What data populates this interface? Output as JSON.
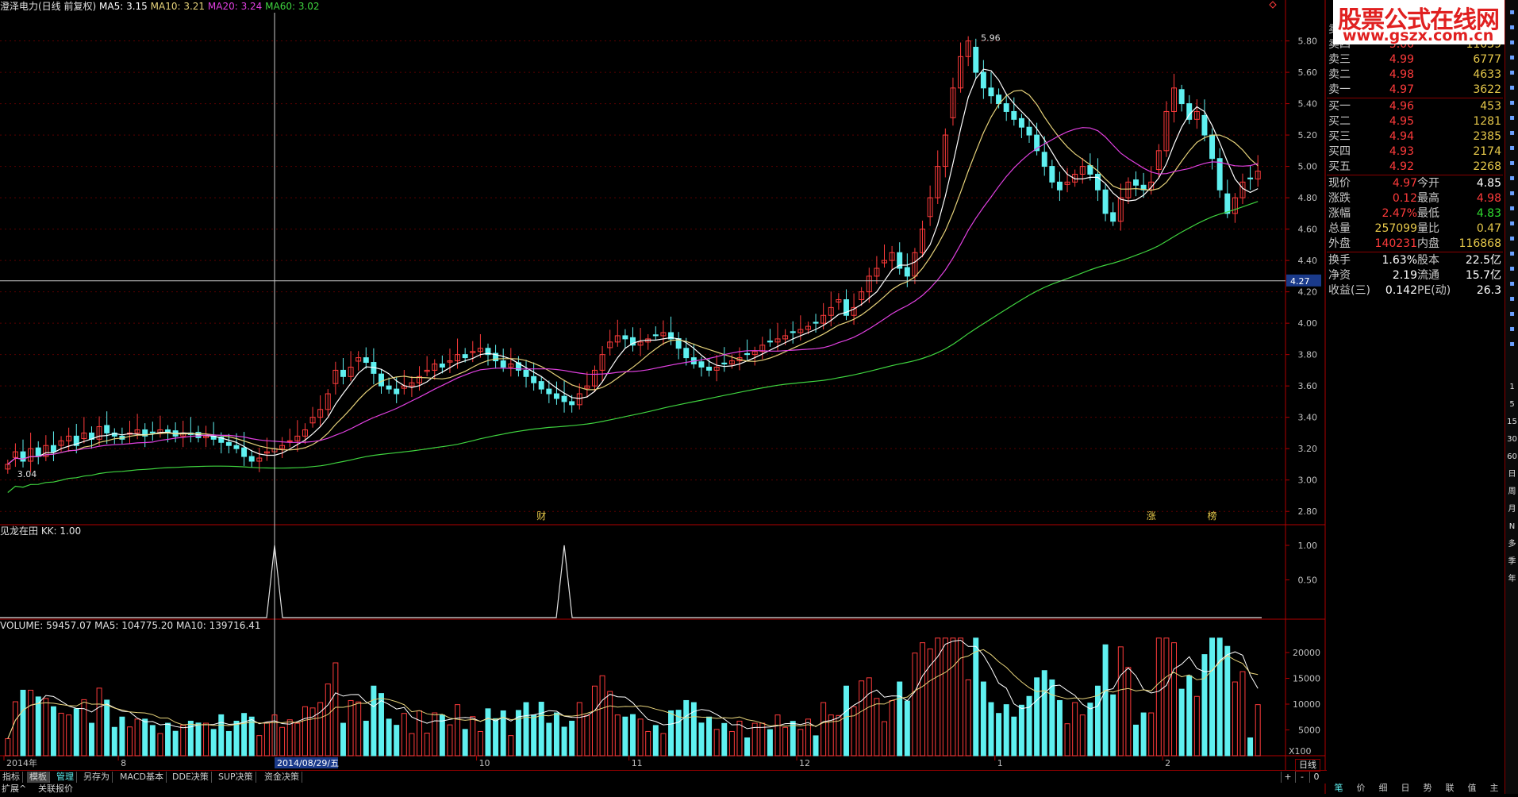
{
  "header": {
    "title": "澄泽电力(日线 前复权)",
    "ma5_label": "MA5: 3.15",
    "ma10_label": "MA10: 3.21",
    "ma20_label": "MA20: 3.24",
    "ma60_label": "MA60: 3.02"
  },
  "colors": {
    "up": "#ff3b3b",
    "down": "#5ff0f0",
    "ma5": "#ffffff",
    "ma10": "#e6d27a",
    "ma20": "#e040e0",
    "ma60": "#3fd43f",
    "axis": "#b00000"
  },
  "chart_data": {
    "type": "candlestick",
    "price_axis": {
      "ticks": [
        "5.80",
        "5.60",
        "5.40",
        "5.20",
        "5.00",
        "4.80",
        "4.60",
        "4.40",
        "4.20",
        "4.00",
        "3.80",
        "3.60",
        "3.40",
        "3.20",
        "3.00",
        "2.80"
      ],
      "range": [
        2.72,
        5.98
      ]
    },
    "crosshair_price": "4.27",
    "crosshair_date": "2014/08/29/五",
    "high_annotation": "5.96",
    "low_annotation": "3.04",
    "markers": [
      {
        "text": "财",
        "index": 70
      },
      {
        "text": "涨",
        "index": 150
      },
      {
        "text": "榜",
        "index": 158
      }
    ],
    "x_labels": [
      {
        "text": "2014年",
        "index": 0
      },
      {
        "text": "8",
        "index": 15
      },
      {
        "text": "10",
        "index": 62
      },
      {
        "text": "11",
        "index": 82
      },
      {
        "text": "12",
        "index": 104
      },
      {
        "text": "1",
        "index": 130
      },
      {
        "text": "2",
        "index": 152
      }
    ],
    "ohlc_seed": [
      3.1,
      3.18,
      3.12,
      3.2,
      3.15,
      3.22,
      3.18,
      3.25,
      3.28,
      3.22,
      3.3,
      3.26,
      3.34,
      3.3,
      3.28,
      3.26,
      3.3,
      3.32,
      3.28,
      3.3,
      3.32,
      3.3,
      3.28,
      3.3,
      3.29,
      3.27,
      3.28,
      3.26,
      3.24,
      3.22,
      3.2,
      3.15,
      3.12,
      3.14,
      3.18,
      3.2,
      3.22,
      3.25,
      3.28,
      3.32,
      3.4,
      3.45,
      3.55,
      3.7,
      3.66,
      3.72,
      3.78,
      3.75,
      3.68,
      3.6,
      3.58,
      3.55,
      3.6,
      3.62,
      3.66,
      3.7,
      3.74,
      3.72,
      3.76,
      3.8,
      3.78,
      3.82,
      3.84,
      3.8,
      3.76,
      3.72,
      3.74,
      3.7,
      3.66,
      3.62,
      3.58,
      3.55,
      3.52,
      3.5,
      3.48,
      3.55,
      3.6,
      3.7,
      3.8,
      3.88,
      3.92,
      3.9,
      3.86,
      3.88,
      3.9,
      3.92,
      3.94,
      3.9,
      3.84,
      3.78,
      3.74,
      3.72,
      3.7,
      3.72,
      3.74,
      3.76,
      3.78,
      3.8,
      3.82,
      3.86,
      3.88,
      3.9,
      3.92,
      3.94,
      3.96,
      3.98,
      4.0,
      4.05,
      4.1,
      4.15,
      4.05,
      4.1,
      4.2,
      4.3,
      4.35,
      4.4,
      4.45,
      4.35,
      4.3,
      4.45,
      4.6,
      4.8,
      5.0,
      5.2,
      5.5,
      5.7,
      5.8,
      5.6,
      5.5,
      5.45,
      5.4,
      5.35,
      5.3,
      5.25,
      5.2,
      5.1,
      5.0,
      4.9,
      4.85,
      4.9,
      4.95,
      5.0,
      4.95,
      4.85,
      4.7,
      4.65,
      4.8,
      4.9,
      4.88,
      4.85,
      4.9,
      5.1,
      5.35,
      5.5,
      5.4,
      5.3,
      5.35,
      5.2,
      5.05,
      4.85,
      4.7,
      4.8,
      4.9,
      4.92,
      4.97
    ],
    "indicator": {
      "title": "见龙在田 KK: 1.00",
      "ticks": [
        "1.00",
        "0.50"
      ],
      "spikes": [
        35,
        73
      ]
    },
    "volume": {
      "title": "VOLUME: 59457.07 MA5: 104775.20 MA10: 139716.41",
      "ticks": [
        "20000",
        "15000",
        "10000",
        "5000"
      ],
      "unit": "X100",
      "max": 24000
    }
  },
  "tabs": [
    "指标",
    "模板",
    "管理",
    "另存为",
    "MACD基本",
    "DDE决策",
    "SUP决策",
    "资金决策"
  ],
  "tabs_row2": [
    "扩展^",
    "关联报价"
  ],
  "period_label": "日线",
  "zoom_buttons": [
    "+",
    "-",
    "0"
  ],
  "book": {
    "asks": [
      {
        "label": "卖五",
        "price": "5.01",
        "vol": "3330"
      },
      {
        "label": "卖四",
        "price": "5.00",
        "vol": "11039"
      },
      {
        "label": "卖三",
        "price": "4.99",
        "vol": "6777"
      },
      {
        "label": "卖二",
        "price": "4.98",
        "vol": "4633"
      },
      {
        "label": "卖一",
        "price": "4.97",
        "vol": "3622"
      }
    ],
    "bids": [
      {
        "label": "买一",
        "price": "4.96",
        "vol": "453"
      },
      {
        "label": "买二",
        "price": "4.95",
        "vol": "1281"
      },
      {
        "label": "买三",
        "price": "4.94",
        "vol": "2385"
      },
      {
        "label": "买四",
        "price": "4.93",
        "vol": "2174"
      },
      {
        "label": "买五",
        "price": "4.92",
        "vol": "2268"
      }
    ],
    "stats": [
      {
        "l1": "现价",
        "v1": "4.97",
        "c1": "red",
        "l2": "今开",
        "v2": "4.85",
        "c2": "wht"
      },
      {
        "l1": "涨跌",
        "v1": "0.12",
        "c1": "red",
        "l2": "最高",
        "v2": "4.98",
        "c2": "red"
      },
      {
        "l1": "涨幅",
        "v1": "2.47%",
        "c1": "red",
        "l2": "最低",
        "v2": "4.83",
        "c2": "grn"
      },
      {
        "l1": "总量",
        "v1": "257099",
        "c1": "yel",
        "l2": "量比",
        "v2": "0.47",
        "c2": "yel"
      },
      {
        "l1": "外盘",
        "v1": "140231",
        "c1": "red",
        "l2": "内盘",
        "v2": "116868",
        "c2": "yel"
      },
      {
        "l1": "换手",
        "v1": "1.63%",
        "c1": "wht",
        "l2": "股本",
        "v2": "22.5亿",
        "c2": "wht"
      },
      {
        "l1": "净资",
        "v1": "2.19",
        "c1": "wht",
        "l2": "流通",
        "v2": "15.7亿",
        "c2": "wht"
      },
      {
        "l1": "收益(三)",
        "v1": "0.142",
        "c1": "wht",
        "l2": "PE(动)",
        "v2": "26.3",
        "c2": "wht"
      }
    ],
    "bottom_tabs": [
      "笔",
      "价",
      "细",
      "日",
      "势",
      "联",
      "值",
      "主"
    ]
  },
  "right_tools": [
    "1",
    "5",
    "15",
    "30",
    "60",
    "日",
    "周",
    "月",
    "N",
    "多",
    "季",
    "年"
  ],
  "watermark": {
    "line1": "股票公式在线网",
    "line2": "www.gszx.com.cn"
  }
}
